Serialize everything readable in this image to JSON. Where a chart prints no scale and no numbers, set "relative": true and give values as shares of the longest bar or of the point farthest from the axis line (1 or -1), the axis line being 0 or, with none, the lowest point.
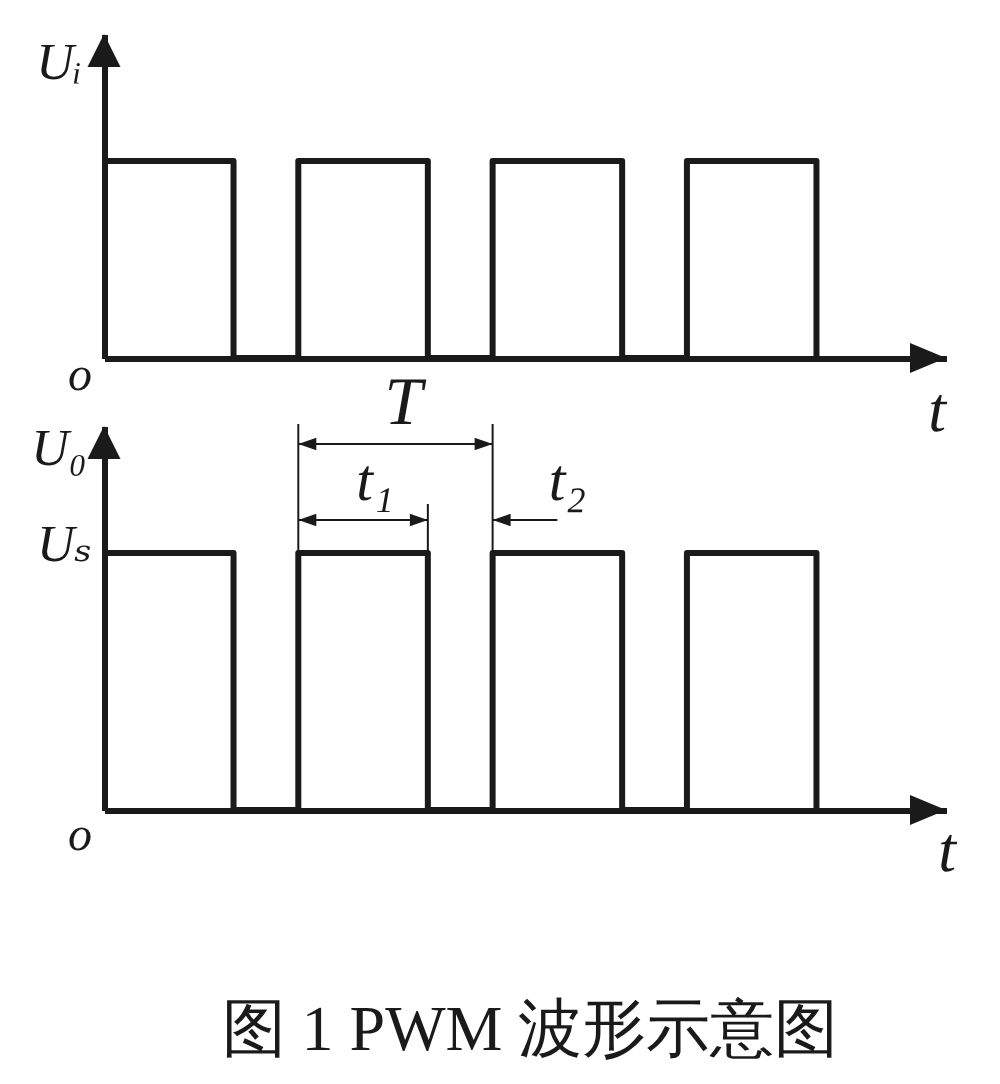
{
  "chart_data": [
    {
      "type": "step",
      "relative": true,
      "ylabel": "Uᵢ",
      "xlabel": "t",
      "categories": [
        null,
        null,
        null,
        null,
        null,
        null,
        null,
        null,
        null,
        null,
        null,
        null,
        null,
        null
      ],
      "series": [
        {
          "color": "#1a1a1a",
          "values": [
            1,
            1,
            0,
            1,
            1,
            0,
            1,
            1,
            0,
            1,
            1,
            0,
            null,
            null
          ]
        }
      ],
      "annotations": [
        "o"
      ]
    },
    {
      "type": "step",
      "relative": true,
      "ylabel": "U₀",
      "xlabel": "t",
      "categories": [
        null,
        null,
        null,
        null,
        null,
        null,
        null,
        null,
        null,
        null,
        null,
        null,
        null,
        null
      ],
      "series": [
        {
          "color": "#1a1a1a",
          "values": [
            1,
            1,
            0,
            1,
            1,
            0,
            1,
            1,
            0,
            1,
            1,
            0,
            null,
            null
          ]
        }
      ],
      "annotations": [
        "Uₛ",
        "o",
        "T",
        "t₁",
        "t₂",
        "图 1  PWM 波形示意图"
      ]
    }
  ]
}
